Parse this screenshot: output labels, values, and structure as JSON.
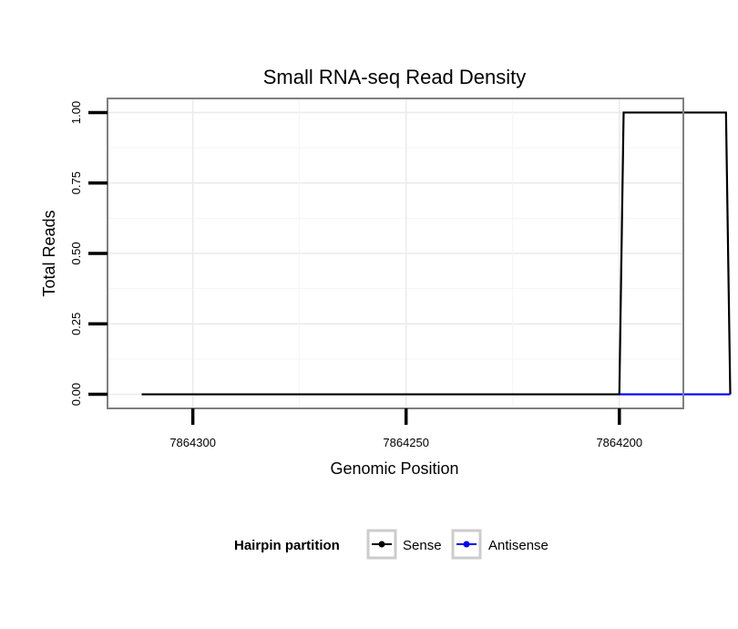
{
  "chart_data": {
    "type": "line",
    "title": "Small RNA-seq Read Density",
    "xlabel": "Genomic Position",
    "ylabel": "Total Reads",
    "x_reversed": true,
    "xlim": [
      7864320,
      7864185
    ],
    "ylim": [
      -0.05,
      1.05
    ],
    "x_ticks": [
      7864300,
      7864250,
      7864200
    ],
    "x_tick_labels": [
      "7864300",
      "7864250",
      "7864200"
    ],
    "y_ticks": [
      0,
      0.25,
      0.5,
      0.75,
      1.0
    ],
    "y_tick_labels": [
      "0.00",
      "0.25",
      "0.50",
      "0.75",
      "1.00"
    ],
    "grid": true,
    "series": [
      {
        "name": "Sense",
        "color": "#000000",
        "x": [
          7864312,
          7864200,
          7864199,
          7864175,
          7864174
        ],
        "values": [
          0,
          0,
          1,
          1,
          0
        ]
      },
      {
        "name": "Antisense",
        "color": "#0000ff",
        "x": [
          7864200,
          7864174
        ],
        "values": [
          0,
          0
        ]
      }
    ],
    "legend": {
      "title": "Hairpin partition",
      "position": "bottom",
      "entries": [
        "Sense",
        "Antisense"
      ]
    }
  }
}
